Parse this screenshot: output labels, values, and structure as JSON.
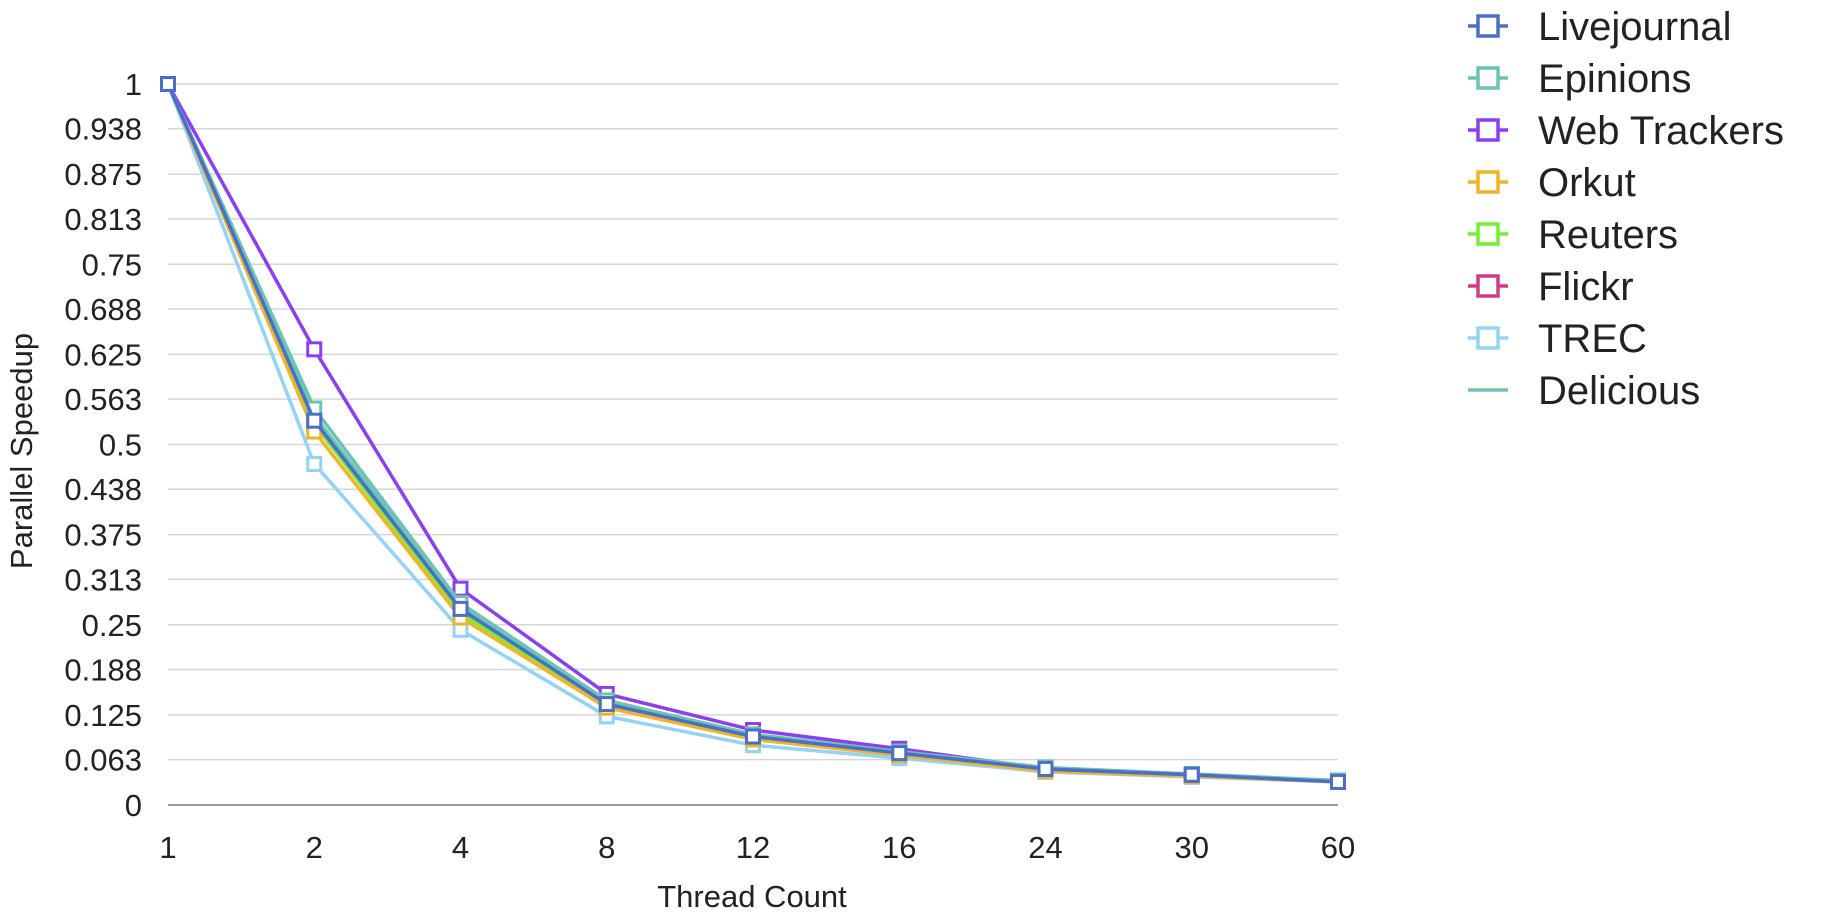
{
  "chart_data": {
    "type": "line",
    "xlabel": "Thread Count",
    "ylabel": "Parallel Speedup",
    "categories": [
      "1",
      "2",
      "4",
      "8",
      "12",
      "16",
      "24",
      "30",
      "60"
    ],
    "y_ticks": [
      "0",
      "0.063",
      "0.125",
      "0.188",
      "0.25",
      "0.313",
      "0.375",
      "0.438",
      "0.5",
      "0.563",
      "0.625",
      "0.688",
      "0.75",
      "0.813",
      "0.875",
      "0.938",
      "1"
    ],
    "ylim": [
      0,
      1
    ],
    "grid": true,
    "legend_position": "right",
    "series": [
      {
        "name": "Livejournal",
        "color": "#4a6fc9",
        "marker": "square",
        "values": [
          1,
          0.533,
          0.272,
          0.14,
          0.095,
          0.072,
          0.05,
          0.042,
          0.032
        ]
      },
      {
        "name": "Epinions",
        "color": "#6cc4b3",
        "marker": "square",
        "values": [
          1,
          0.55,
          0.28,
          0.145,
          0.098,
          0.074,
          0.052,
          0.043,
          0.034
        ]
      },
      {
        "name": "Web Trackers",
        "color": "#8c3ff0",
        "marker": "square",
        "values": [
          1,
          0.632,
          0.3,
          0.154,
          0.104,
          0.078,
          0.05,
          0.042,
          0.033
        ]
      },
      {
        "name": "Orkut",
        "color": "#f0b429",
        "marker": "square",
        "values": [
          1,
          0.518,
          0.26,
          0.135,
          0.091,
          0.069,
          0.047,
          0.04,
          0.032
        ]
      },
      {
        "name": "Reuters",
        "color": "#77ee33",
        "marker": "square",
        "values": [
          1,
          0.528,
          0.266,
          0.137,
          0.093,
          0.07,
          0.048,
          0.041,
          0.033
        ]
      },
      {
        "name": "Flickr",
        "color": "#d43a8c",
        "marker": "square",
        "values": [
          1,
          0.53,
          0.268,
          0.138,
          0.094,
          0.071,
          0.049,
          0.041,
          0.033
        ]
      },
      {
        "name": "TREC",
        "color": "#93d3f5",
        "marker": "square",
        "values": [
          1,
          0.473,
          0.243,
          0.123,
          0.083,
          0.065,
          0.046,
          0.039,
          0.032
        ]
      },
      {
        "name": "Delicious",
        "color": "#6cc4b3",
        "marker": "none",
        "values": [
          1,
          0.54,
          0.276,
          0.142,
          0.096,
          0.073,
          0.05,
          0.042,
          0.033
        ]
      }
    ]
  }
}
